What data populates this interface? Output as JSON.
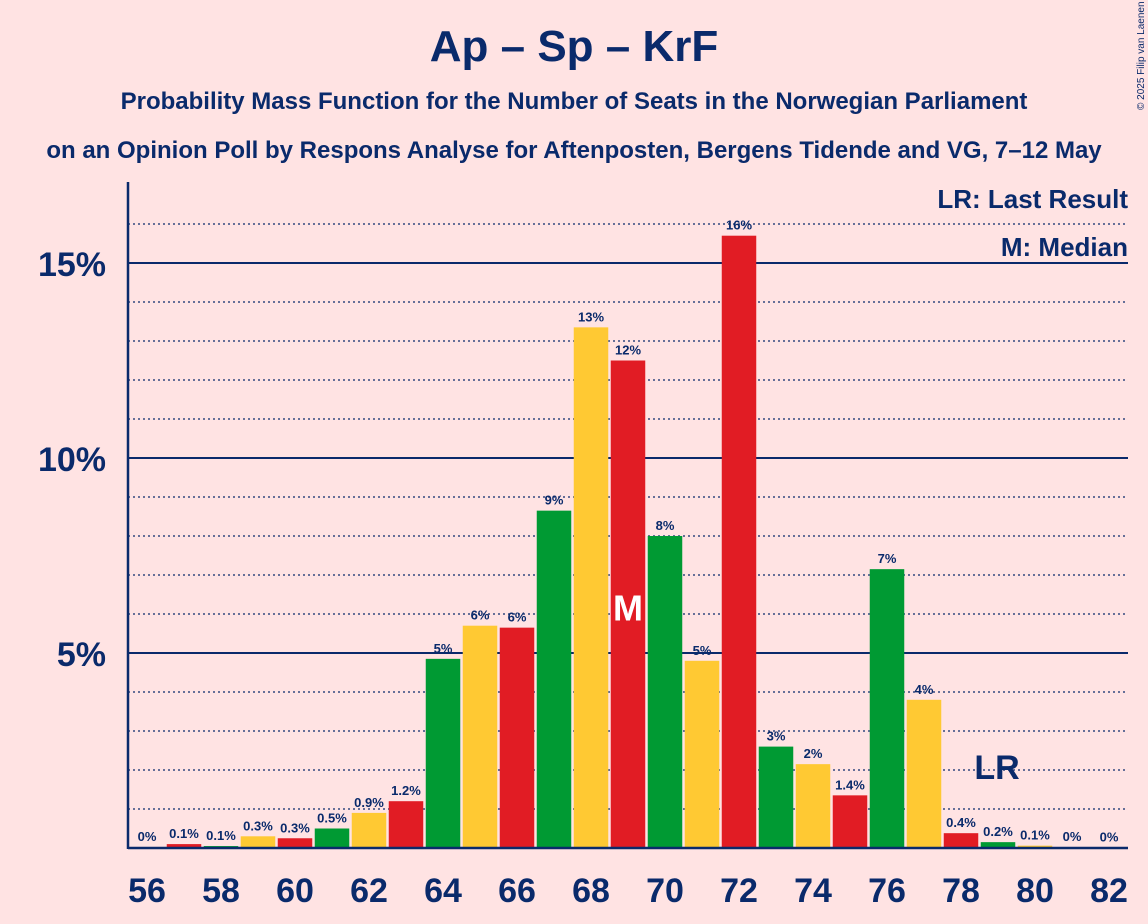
{
  "title": "Ap – Sp – KrF",
  "subtitle_line1": "Probability Mass Function for the Number of Seats in the Norwegian Parliament",
  "subtitle_line2": "on an Opinion Poll by Respons Analyse for Aftenposten, Bergens Tidende and VG, 7–12 May",
  "copyright": "© 2025 Filip van Laenen",
  "legend": {
    "last_result": "LR: Last Result",
    "median": "M: Median"
  },
  "colors": {
    "background": "#ffe3e3",
    "text": "#0a2a6b",
    "red": "#e11c24",
    "green": "#009a33",
    "yellow": "#ffc933"
  },
  "chart_data": {
    "type": "bar",
    "categories": [
      56,
      57,
      58,
      59,
      60,
      61,
      62,
      63,
      64,
      65,
      66,
      67,
      68,
      69,
      70,
      71,
      72,
      73,
      74,
      75,
      76,
      77,
      78,
      79,
      80,
      81,
      82
    ],
    "values": [
      0.02,
      0.1,
      0.05,
      0.3,
      0.25,
      0.5,
      0.9,
      1.2,
      4.85,
      5.7,
      5.65,
      8.65,
      13.35,
      12.5,
      8.0,
      4.8,
      15.7,
      2.6,
      2.15,
      1.35,
      7.15,
      3.8,
      0.38,
      0.15,
      0.06,
      0.02,
      0.01
    ],
    "data_labels": [
      "0%",
      "0.1%",
      "0.1%",
      "0.3%",
      "0.3%",
      "0.5%",
      "0.9%",
      "1.2%",
      "5%",
      "6%",
      "6%",
      "9%",
      "13%",
      "12%",
      "8%",
      "5%",
      "16%",
      "3%",
      "2%",
      "1.4%",
      "7%",
      "4%",
      "0.4%",
      "0.2%",
      "0.1%",
      "0%",
      "0%"
    ],
    "bar_colors": [
      "red",
      "red",
      "green",
      "yellow",
      "red",
      "green",
      "yellow",
      "red",
      "green",
      "yellow",
      "red",
      "green",
      "yellow",
      "red",
      "green",
      "yellow",
      "red",
      "green",
      "yellow",
      "red",
      "green",
      "yellow",
      "red",
      "green",
      "yellow",
      "red",
      "green"
    ],
    "x_tick_labels": [
      "56",
      "58",
      "60",
      "62",
      "64",
      "66",
      "68",
      "70",
      "72",
      "74",
      "76",
      "78",
      "80",
      "82"
    ],
    "y_ticks": [
      5,
      10,
      15
    ],
    "y_tick_labels": [
      "5%",
      "10%",
      "15%"
    ],
    "ylim": [
      0,
      17
    ],
    "median_seat": 69,
    "median_label": "M",
    "last_result_seat": 79,
    "last_result_label": "LR"
  }
}
